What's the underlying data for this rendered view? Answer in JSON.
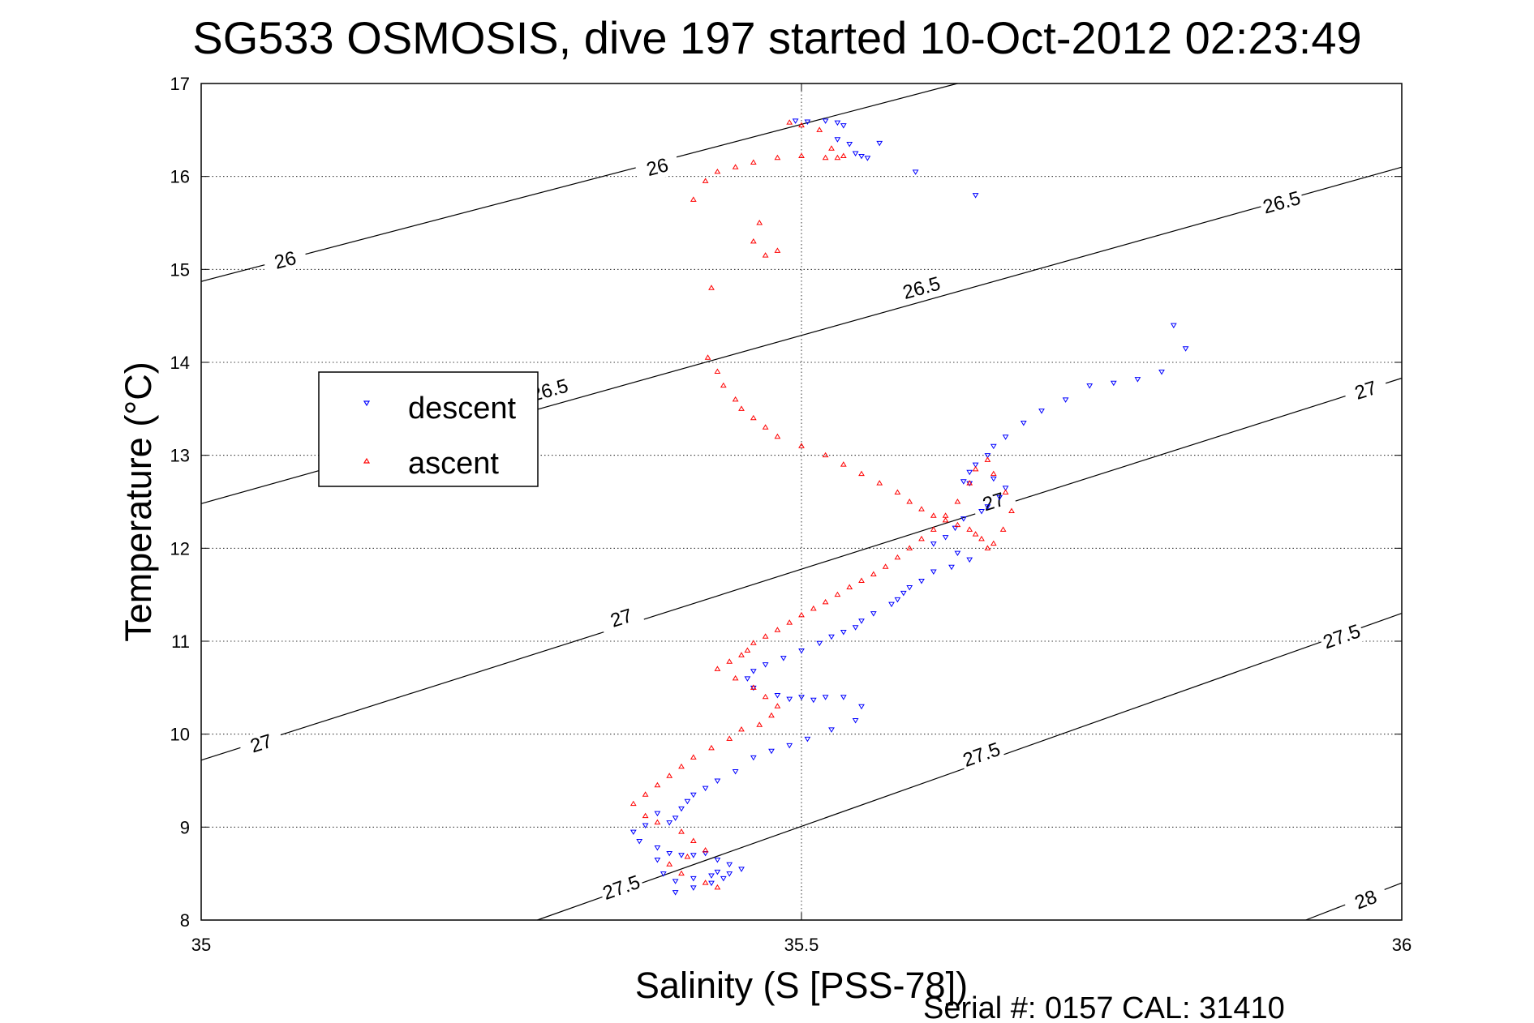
{
  "chart_data": {
    "type": "scatter",
    "title": "SG533 OSMOSIS, dive 197 started 10-Oct-2012 02:23:49",
    "xlabel": "Salinity (S [PSS-78])",
    "ylabel": "Temperature (°C)",
    "xlim": [
      35,
      36
    ],
    "ylim": [
      8,
      17
    ],
    "xticks": [
      35,
      35.5,
      36
    ],
    "xtick_labels": [
      "35",
      "35.5",
      "36"
    ],
    "yticks": [
      8,
      9,
      10,
      11,
      12,
      13,
      14,
      15,
      16,
      17
    ],
    "ytick_labels": [
      "8",
      "9",
      "10",
      "11",
      "12",
      "13",
      "14",
      "15",
      "16",
      "17"
    ],
    "grid": true,
    "legend": {
      "position": "upper-left",
      "entries": [
        "descent",
        "ascent"
      ]
    },
    "footer_text": "Serial #: 0157  CAL: 31410",
    "colors": {
      "descent": "#0000ff",
      "ascent": "#ff0000",
      "contour": "#000000"
    },
    "contours": [
      {
        "level": "26",
        "points": [
          [
            35,
            14.87
          ],
          [
            35.63,
            17.0
          ]
        ],
        "labels": [
          [
            35.07,
            15.1
          ],
          [
            35.38,
            16.1
          ]
        ]
      },
      {
        "level": "26.5",
        "points": [
          [
            35,
            12.48
          ],
          [
            36,
            16.1
          ]
        ],
        "labels": [
          [
            35.29,
            13.7
          ],
          [
            35.6,
            14.8
          ],
          [
            35.9,
            15.72
          ]
        ]
      },
      {
        "level": "27",
        "points": [
          [
            35,
            9.72
          ],
          [
            36,
            13.83
          ]
        ],
        "labels": [
          [
            35.05,
            9.9
          ],
          [
            35.35,
            11.25
          ],
          [
            35.66,
            12.5
          ],
          [
            35.97,
            13.7
          ]
        ]
      },
      {
        "level": "27.5",
        "points": [
          [
            35.28,
            8.0
          ],
          [
            36,
            11.3
          ]
        ],
        "labels": [
          [
            35.35,
            8.35
          ],
          [
            35.65,
            9.78
          ],
          [
            35.95,
            11.05
          ]
        ]
      },
      {
        "level": "28",
        "points": [
          [
            35.92,
            8.0
          ],
          [
            36,
            8.4
          ]
        ],
        "labels": [
          [
            35.97,
            8.22
          ]
        ]
      }
    ],
    "series": [
      {
        "name": "descent",
        "marker": "triangle-down",
        "x": [
          35.495,
          35.505,
          35.52,
          35.53,
          35.535,
          35.53,
          35.54,
          35.545,
          35.55,
          35.555,
          35.565,
          35.595,
          35.645,
          35.81,
          35.82,
          35.8,
          35.78,
          35.76,
          35.74,
          35.72,
          35.7,
          35.685,
          35.67,
          35.66,
          35.655,
          35.645,
          35.64,
          35.635,
          35.64,
          35.66,
          35.67,
          35.665,
          35.655,
          35.65,
          35.635,
          35.628,
          35.62,
          35.61,
          35.63,
          35.64,
          35.625,
          35.61,
          35.6,
          35.59,
          35.585,
          35.58,
          35.575,
          35.56,
          35.55,
          35.545,
          35.535,
          35.525,
          35.515,
          35.5,
          35.485,
          35.47,
          35.46,
          35.455,
          35.46,
          35.48,
          35.49,
          35.5,
          35.51,
          35.52,
          35.535,
          35.55,
          35.545,
          35.525,
          35.505,
          35.49,
          35.475,
          35.46,
          35.445,
          35.43,
          35.42,
          35.41,
          35.405,
          35.4,
          35.395,
          35.39,
          35.38,
          35.37,
          35.36,
          35.365,
          35.38,
          35.4,
          35.42,
          35.43,
          35.44,
          35.45,
          35.44,
          35.425,
          35.41,
          35.395,
          35.385,
          35.38,
          35.39,
          35.41,
          35.43,
          35.435,
          35.425,
          35.41,
          35.395
        ],
        "y": [
          16.6,
          16.59,
          16.6,
          16.58,
          16.55,
          16.4,
          16.35,
          16.25,
          16.22,
          16.2,
          16.36,
          16.05,
          15.8,
          14.4,
          14.15,
          13.9,
          13.82,
          13.78,
          13.75,
          13.6,
          13.48,
          13.35,
          13.2,
          13.1,
          13.0,
          12.9,
          12.82,
          12.72,
          12.7,
          12.75,
          12.65,
          12.55,
          12.45,
          12.4,
          12.32,
          12.22,
          12.12,
          12.05,
          11.95,
          11.88,
          11.8,
          11.75,
          11.65,
          11.58,
          11.52,
          11.45,
          11.4,
          11.3,
          11.22,
          11.15,
          11.1,
          11.05,
          10.98,
          10.9,
          10.82,
          10.75,
          10.68,
          10.6,
          10.5,
          10.42,
          10.38,
          10.4,
          10.37,
          10.4,
          10.4,
          10.3,
          10.15,
          10.05,
          9.95,
          9.88,
          9.82,
          9.75,
          9.6,
          9.5,
          9.42,
          9.35,
          9.28,
          9.2,
          9.1,
          9.05,
          9.15,
          9.02,
          8.95,
          8.85,
          8.78,
          8.7,
          8.72,
          8.65,
          8.6,
          8.55,
          8.5,
          8.48,
          8.45,
          8.42,
          8.5,
          8.65,
          8.72,
          8.7,
          8.52,
          8.45,
          8.4,
          8.35,
          8.3
        ]
      },
      {
        "name": "ascent",
        "marker": "triangle-up",
        "x": [
          35.49,
          35.5,
          35.515,
          35.525,
          35.53,
          35.535,
          35.52,
          35.5,
          35.48,
          35.46,
          35.445,
          35.43,
          35.42,
          35.41,
          35.465,
          35.46,
          35.47,
          35.48,
          35.425,
          35.422,
          35.43,
          35.435,
          35.445,
          35.45,
          35.46,
          35.47,
          35.48,
          35.5,
          35.52,
          35.535,
          35.55,
          35.565,
          35.58,
          35.59,
          35.6,
          35.61,
          35.62,
          35.63,
          35.64,
          35.645,
          35.65,
          35.655,
          35.66,
          35.668,
          35.675,
          35.67,
          35.66,
          35.655,
          35.645,
          35.64,
          35.63,
          35.62,
          35.61,
          35.6,
          35.59,
          35.58,
          35.57,
          35.56,
          35.55,
          35.54,
          35.53,
          35.52,
          35.51,
          35.5,
          35.49,
          35.48,
          35.47,
          35.46,
          35.455,
          35.45,
          35.44,
          35.43,
          35.445,
          35.46,
          35.47,
          35.48,
          35.475,
          35.465,
          35.45,
          35.44,
          35.425,
          35.41,
          35.4,
          35.39,
          35.38,
          35.37,
          35.36,
          35.37,
          35.38,
          35.4,
          35.41,
          35.42,
          35.405,
          35.39,
          35.4,
          35.42,
          35.43
        ],
        "y": [
          16.58,
          16.55,
          16.5,
          16.3,
          16.2,
          16.22,
          16.2,
          16.22,
          16.2,
          16.15,
          16.1,
          16.05,
          15.95,
          15.75,
          15.5,
          15.3,
          15.15,
          15.2,
          14.8,
          14.05,
          13.9,
          13.75,
          13.6,
          13.5,
          13.4,
          13.3,
          13.2,
          13.1,
          13.0,
          12.9,
          12.8,
          12.7,
          12.6,
          12.5,
          12.42,
          12.35,
          12.3,
          12.25,
          12.2,
          12.15,
          12.1,
          12.0,
          12.05,
          12.2,
          12.4,
          12.6,
          12.8,
          12.95,
          12.85,
          12.7,
          12.5,
          12.35,
          12.2,
          12.1,
          12.0,
          11.9,
          11.8,
          11.72,
          11.65,
          11.58,
          11.5,
          11.42,
          11.35,
          11.28,
          11.2,
          11.12,
          11.05,
          10.98,
          10.9,
          10.85,
          10.78,
          10.7,
          10.6,
          10.5,
          10.4,
          10.3,
          10.2,
          10.1,
          10.05,
          9.95,
          9.85,
          9.75,
          9.65,
          9.55,
          9.45,
          9.35,
          9.25,
          9.12,
          9.05,
          8.95,
          8.85,
          8.75,
          8.68,
          8.6,
          8.5,
          8.4,
          8.35
        ]
      }
    ]
  }
}
